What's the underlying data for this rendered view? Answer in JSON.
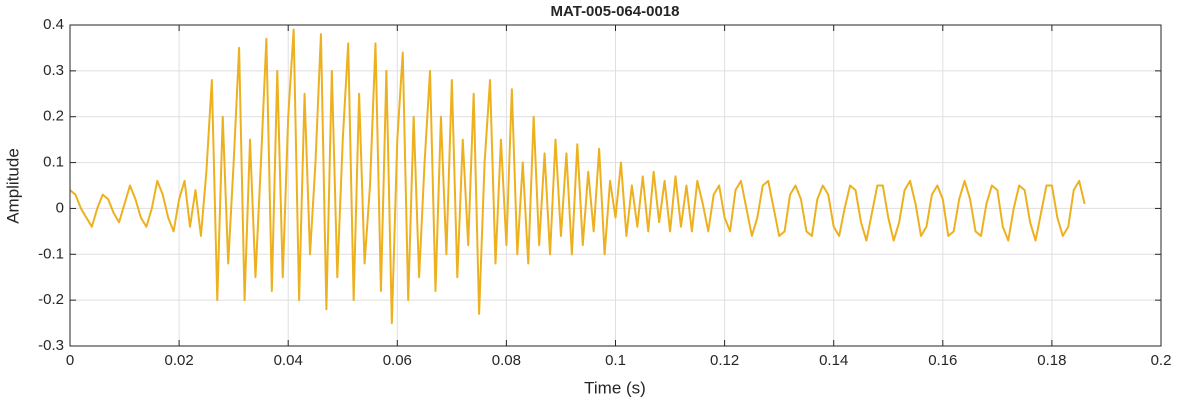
{
  "chart_data": {
    "type": "line",
    "title": "MAT-005-064-0018",
    "xlabel": "Time (s)",
    "ylabel": "Amplitude",
    "xlim": [
      0,
      0.2
    ],
    "ylim": [
      -0.3,
      0.4
    ],
    "xticks": [
      0,
      0.02,
      0.04,
      0.06,
      0.08,
      0.1,
      0.12,
      0.14,
      0.16,
      0.18,
      0.2
    ],
    "yticks": [
      -0.3,
      -0.2,
      -0.1,
      0,
      0.1,
      0.2,
      0.3,
      0.4
    ],
    "grid": true,
    "series": [
      {
        "color": "#EDB120",
        "x": [
          0,
          0.001,
          0.002,
          0.003,
          0.004,
          0.005,
          0.006,
          0.007,
          0.008,
          0.009,
          0.01,
          0.011,
          0.012,
          0.013,
          0.014,
          0.015,
          0.016,
          0.017,
          0.018,
          0.019,
          0.02,
          0.021,
          0.022,
          0.023,
          0.024,
          0.025,
          0.026,
          0.027,
          0.028,
          0.029,
          0.03,
          0.031,
          0.032,
          0.033,
          0.034,
          0.035,
          0.036,
          0.037,
          0.038,
          0.039,
          0.04,
          0.041,
          0.042,
          0.043,
          0.044,
          0.045,
          0.046,
          0.047,
          0.048,
          0.049,
          0.05,
          0.051,
          0.052,
          0.053,
          0.054,
          0.055,
          0.056,
          0.057,
          0.058,
          0.059,
          0.06,
          0.061,
          0.062,
          0.063,
          0.064,
          0.065,
          0.066,
          0.067,
          0.068,
          0.069,
          0.07,
          0.071,
          0.072,
          0.073,
          0.074,
          0.075,
          0.076,
          0.077,
          0.078,
          0.079,
          0.08,
          0.081,
          0.082,
          0.083,
          0.084,
          0.085,
          0.086,
          0.087,
          0.088,
          0.089,
          0.09,
          0.091,
          0.092,
          0.093,
          0.094,
          0.095,
          0.096,
          0.097,
          0.098,
          0.099,
          0.1,
          0.101,
          0.102,
          0.103,
          0.104,
          0.105,
          0.106,
          0.107,
          0.108,
          0.109,
          0.11,
          0.111,
          0.112,
          0.113,
          0.114,
          0.115,
          0.116,
          0.117,
          0.118,
          0.119,
          0.12,
          0.121,
          0.122,
          0.123,
          0.124,
          0.125,
          0.126,
          0.127,
          0.128,
          0.129,
          0.13,
          0.131,
          0.132,
          0.133,
          0.134,
          0.135,
          0.136,
          0.137,
          0.138,
          0.139,
          0.14,
          0.141,
          0.142,
          0.143,
          0.144,
          0.145,
          0.146,
          0.147,
          0.148,
          0.149,
          0.15,
          0.151,
          0.152,
          0.153,
          0.154,
          0.155,
          0.156,
          0.157,
          0.158,
          0.159,
          0.16,
          0.161,
          0.162,
          0.163,
          0.164,
          0.165,
          0.166,
          0.167,
          0.168,
          0.169,
          0.17,
          0.171,
          0.172,
          0.173,
          0.174,
          0.175,
          0.176,
          0.177,
          0.178,
          0.179,
          0.18,
          0.181,
          0.182,
          0.183,
          0.184,
          0.185,
          0.186
        ],
        "values": [
          0.04,
          0.03,
          0.0,
          -0.02,
          -0.04,
          0.0,
          0.03,
          0.02,
          -0.01,
          -0.03,
          0.01,
          0.05,
          0.02,
          -0.02,
          -0.04,
          0.0,
          0.06,
          0.03,
          -0.02,
          -0.05,
          0.02,
          0.06,
          -0.04,
          0.04,
          -0.06,
          0.08,
          0.28,
          -0.2,
          0.2,
          -0.12,
          0.1,
          0.35,
          -0.2,
          0.15,
          -0.15,
          0.1,
          0.37,
          -0.18,
          0.3,
          -0.15,
          0.2,
          0.39,
          -0.2,
          0.25,
          -0.1,
          0.1,
          0.38,
          -0.22,
          0.3,
          -0.15,
          0.15,
          0.36,
          -0.2,
          0.25,
          -0.12,
          0.05,
          0.36,
          -0.18,
          0.3,
          -0.25,
          0.15,
          0.34,
          -0.2,
          0.2,
          -0.15,
          0.1,
          0.3,
          -0.18,
          0.2,
          -0.1,
          0.28,
          -0.15,
          0.15,
          -0.08,
          0.25,
          -0.23,
          0.1,
          0.28,
          -0.12,
          0.15,
          -0.08,
          0.26,
          -0.1,
          0.1,
          -0.12,
          0.2,
          -0.08,
          0.12,
          -0.1,
          0.15,
          -0.06,
          0.12,
          -0.1,
          0.14,
          -0.08,
          0.08,
          -0.05,
          0.13,
          -0.1,
          0.06,
          -0.02,
          0.1,
          -0.06,
          0.05,
          -0.04,
          0.07,
          -0.05,
          0.08,
          -0.03,
          0.06,
          -0.05,
          0.07,
          -0.04,
          0.05,
          -0.05,
          0.06,
          0.01,
          -0.05,
          0.03,
          0.05,
          -0.02,
          -0.05,
          0.04,
          0.06,
          0.0,
          -0.06,
          -0.02,
          0.05,
          0.06,
          0.0,
          -0.06,
          -0.05,
          0.03,
          0.05,
          0.02,
          -0.05,
          -0.06,
          0.02,
          0.05,
          0.03,
          -0.04,
          -0.06,
          0.0,
          0.05,
          0.04,
          -0.03,
          -0.07,
          -0.01,
          0.05,
          0.05,
          -0.02,
          -0.07,
          -0.03,
          0.04,
          0.06,
          0.01,
          -0.06,
          -0.04,
          0.03,
          0.05,
          0.02,
          -0.06,
          -0.05,
          0.02,
          0.06,
          0.02,
          -0.05,
          -0.06,
          0.01,
          0.05,
          0.04,
          -0.04,
          -0.07,
          0.0,
          0.05,
          0.04,
          -0.03,
          -0.07,
          -0.01,
          0.05,
          0.05,
          -0.02,
          -0.06,
          -0.04,
          0.04,
          0.06,
          0.01
        ]
      }
    ]
  }
}
